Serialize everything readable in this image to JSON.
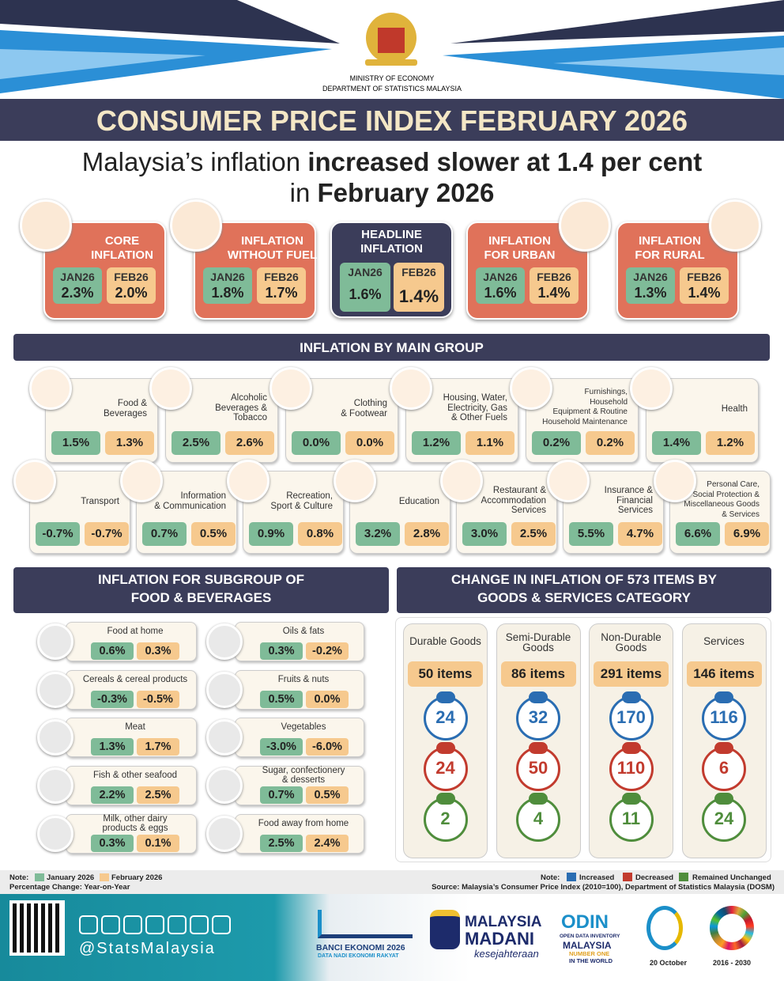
{
  "header": {
    "ministry": "MINISTRY OF ECONOMY",
    "department": "DEPARTMENT OF STATISTICS MALAYSIA",
    "title": "CONSUMER PRICE INDEX FEBRUARY 2026"
  },
  "headline": {
    "line1": [
      "Malaysia’s inflation ",
      "increased slower at 1.4 per cent"
    ],
    "line2": [
      "in ",
      "February 2026"
    ]
  },
  "cards": [
    {
      "title_lines": [
        "CORE",
        "INFLATION"
      ],
      "jan_label": "JAN26",
      "feb_label": "FEB26",
      "jan": "2.3%",
      "feb": "2.0%"
    },
    {
      "title_lines": [
        "INFLATION",
        "WITHOUT FUEL"
      ],
      "jan_label": "JAN26",
      "feb_label": "FEB26",
      "jan": "1.8%",
      "feb": "1.7%"
    },
    {
      "title_lines": [
        "HEADLINE",
        "INFLATION"
      ],
      "jan_label": "JAN26",
      "feb_label": "FEB26",
      "jan": "1.6%",
      "feb": "1.4%"
    },
    {
      "title_lines": [
        "INFLATION",
        "FOR URBAN"
      ],
      "jan_label": "JAN26",
      "feb_label": "FEB26",
      "jan": "1.6%",
      "feb": "1.4%"
    },
    {
      "title_lines": [
        "INFLATION",
        "FOR RURAL"
      ],
      "jan_label": "JAN26",
      "feb_label": "FEB26",
      "jan": "1.3%",
      "feb": "1.4%"
    }
  ],
  "main_group": {
    "title": "INFLATION BY MAIN GROUP",
    "row1": [
      {
        "label_lines": [
          "Food &",
          "Beverages"
        ],
        "jan": "1.5%",
        "feb": "1.3%"
      },
      {
        "label_lines": [
          "Alcoholic",
          "Beverages &",
          "Tobacco"
        ],
        "jan": "2.5%",
        "feb": "2.6%"
      },
      {
        "label_lines": [
          "Clothing",
          "& Footwear"
        ],
        "jan": "0.0%",
        "feb": "0.0%"
      },
      {
        "label_lines": [
          "Housing, Water,",
          "Electricity, Gas",
          "& Other Fuels"
        ],
        "jan": "1.2%",
        "feb": "1.1%"
      },
      {
        "label_lines": [
          "Furnishings,",
          "Household",
          "Equipment & Routine",
          "Household Maintenance"
        ],
        "jan": "0.2%",
        "feb": "0.2%"
      },
      {
        "label_lines": [
          "Health"
        ],
        "jan": "1.4%",
        "feb": "1.2%"
      }
    ],
    "row2": [
      {
        "label_lines": [
          "Transport"
        ],
        "jan": "-0.7%",
        "feb": "-0.7%"
      },
      {
        "label_lines": [
          "Information",
          "& Communication"
        ],
        "jan": "0.7%",
        "feb": "0.5%"
      },
      {
        "label_lines": [
          "Recreation,",
          "Sport & Culture"
        ],
        "jan": "0.9%",
        "feb": "0.8%"
      },
      {
        "label_lines": [
          "Education"
        ],
        "jan": "3.2%",
        "feb": "2.8%"
      },
      {
        "label_lines": [
          "Restaurant &",
          "Accommodation",
          "Services"
        ],
        "jan": "3.0%",
        "feb": "2.5%"
      },
      {
        "label_lines": [
          "Insurance &",
          "Financial",
          "Services"
        ],
        "jan": "5.5%",
        "feb": "4.7%"
      },
      {
        "label_lines": [
          "Personal Care,",
          "Social Protection &",
          "Miscellaneous Goods",
          "& Services"
        ],
        "jan": "6.6%",
        "feb": "6.9%"
      }
    ]
  },
  "subgroup": {
    "title_lines": [
      "INFLATION FOR SUBGROUP OF",
      "FOOD & BEVERAGES"
    ],
    "items": [
      {
        "label_lines": [
          "Food at home"
        ],
        "jan": "0.6%",
        "feb": "0.3%"
      },
      {
        "label_lines": [
          "Cereals & cereal products"
        ],
        "jan": "-0.3%",
        "feb": "-0.5%"
      },
      {
        "label_lines": [
          "Meat"
        ],
        "jan": "1.3%",
        "feb": "1.7%"
      },
      {
        "label_lines": [
          "Fish & other seafood"
        ],
        "jan": "2.2%",
        "feb": "2.5%"
      },
      {
        "label_lines": [
          "Milk, other dairy",
          "products & eggs"
        ],
        "jan": "0.3%",
        "feb": "0.1%"
      },
      {
        "label_lines": [
          "Oils & fats"
        ],
        "jan": "0.3%",
        "feb": "-0.2%"
      },
      {
        "label_lines": [
          "Fruits & nuts"
        ],
        "jan": "0.5%",
        "feb": "0.0%"
      },
      {
        "label_lines": [
          "Vegetables"
        ],
        "jan": "-3.0%",
        "feb": "-6.0%"
      },
      {
        "label_lines": [
          "Sugar, confectionery",
          "& desserts"
        ],
        "jan": "0.7%",
        "feb": "0.5%"
      },
      {
        "label_lines": [
          "Food away from home"
        ],
        "jan": "2.5%",
        "feb": "2.4%"
      }
    ]
  },
  "items_change": {
    "title_lines": [
      "CHANGE IN INFLATION OF 573 ITEMS BY",
      "GOODS & SERVICES CATEGORY"
    ],
    "categories": [
      {
        "name_lines": [
          "Durable Goods"
        ],
        "count": "50 items",
        "increased": "24",
        "decreased": "24",
        "unchanged": "2"
      },
      {
        "name_lines": [
          "Semi-Durable",
          "Goods"
        ],
        "count": "86 items",
        "increased": "32",
        "decreased": "50",
        "unchanged": "4"
      },
      {
        "name_lines": [
          "Non-Durable",
          "Goods"
        ],
        "count": "291 items",
        "increased": "170",
        "decreased": "110",
        "unchanged": "11"
      },
      {
        "name_lines": [
          "Services"
        ],
        "count": "146 items",
        "increased": "116",
        "decreased": "6",
        "unchanged": "24"
      }
    ]
  },
  "notes": {
    "left_note": "Note:",
    "january": "January 2026",
    "february": "February 2026",
    "basis": "Percentage Change: Year-on-Year",
    "right_note": "Note:",
    "increased": "Increased",
    "decreased": "Decreased",
    "unchanged": "Remained Unchanged",
    "source": "Source: Malaysia’s Consumer Price Index (2010=100), Department of Statistics Malaysia (DOSM)"
  },
  "footer": {
    "handle": "@StatsMalaysia",
    "banci": "BANCI EKONOMI 2026",
    "banci_tagline": "DATA NADI EKONOMI RAKYAT",
    "madani_1": "MALAYSIA",
    "madani_2": "MADANI",
    "madani_3": "kesejahteraan",
    "odin_1": "ODIN",
    "odin_2": "OPEN DATA INVENTORY",
    "odin_3": "MALAYSIA",
    "odin_4": "NUMBER ONE",
    "odin_5": "IN THE WORLD",
    "stats_day": "20 October",
    "sdg_years": "2016 - 2030"
  }
}
